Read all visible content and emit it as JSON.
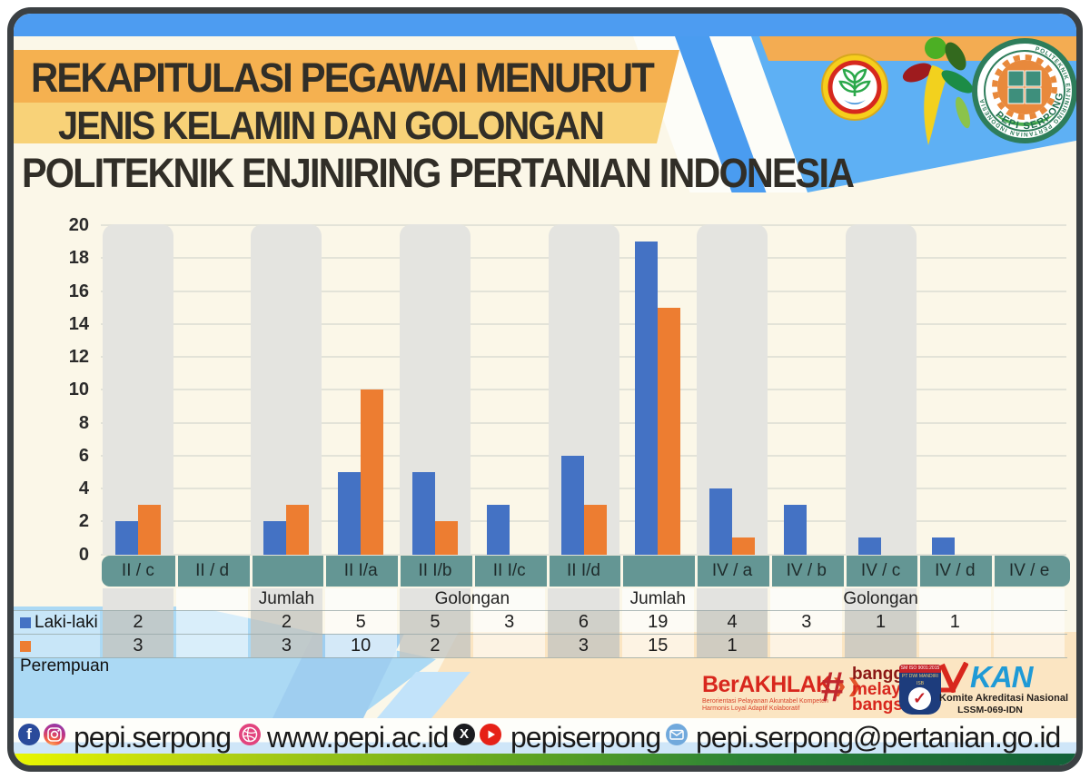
{
  "header": {
    "title_line1": "REKAPITULASI PEGAWAI MENURUT",
    "title_line2": "JENIS KELAMIN DAN GOLONGAN",
    "title_line3": "POLITEKNIK ENJINIRING PERTANIAN INDONESIA",
    "seal_ring_text": "POLITEKNIK ENJINIRING PERTANIAN INDONESIA",
    "seal_bottom_text": "PEPI SERPONG"
  },
  "chart_data": {
    "type": "bar",
    "title": "",
    "categories": [
      "II / c",
      "II / d",
      "",
      "II I/a",
      "II I/b",
      "II I/c",
      "II I/d",
      "",
      "IV / a",
      "IV / b",
      "IV / c",
      "IV / d",
      "IV / e"
    ],
    "group_labels": [
      {
        "text": "Jumlah",
        "from": 2,
        "to": 2
      },
      {
        "text": "Golongan",
        "from": 3,
        "to": 6
      },
      {
        "text": "Jumlah",
        "from": 7,
        "to": 7
      },
      {
        "text": "Golongan",
        "from": 8,
        "to": 12
      }
    ],
    "series": [
      {
        "name": "Laki-laki",
        "color": "#4472C4",
        "values": [
          2,
          null,
          2,
          5,
          5,
          3,
          6,
          19,
          4,
          3,
          1,
          1,
          null
        ]
      },
      {
        "name": "Perempuan",
        "color": "#ED7D31",
        "values": [
          3,
          null,
          3,
          10,
          2,
          null,
          3,
          15,
          1,
          null,
          null,
          null,
          null
        ]
      }
    ],
    "ylim": [
      0,
      20
    ],
    "ytick_step": 2,
    "grid": "horizontal",
    "shaded_columns": [
      0,
      2,
      4,
      6,
      8,
      10
    ],
    "legend_position": "left-of-table"
  },
  "footer": {
    "berakhlak_title": "BerAKHLAK",
    "berakhlak_chevron": "❯❯",
    "berakhlak_tagline1": "Berorientasi Pelayanan Akuntabel Kompeten",
    "berakhlak_tagline2": "Harmonis Loyal Adaptif Kolaboratif",
    "bangga_hash": "#",
    "bangga_line1": "bangga",
    "bangga_line2": "melayani",
    "bangga_line3": "bangsa",
    "iso_badge_line1": "SM ISO 9001:2015",
    "iso_badge_line2": "PT DWI MANDIRI ISB",
    "kan_title": "KAN",
    "kan_line1": "Komite Akreditasi Nasional",
    "kan_line2": "LSSM-069-IDN"
  },
  "social_bar": {
    "handle_fb_ig": "pepi.serpong",
    "website": "www.pepi.ac.id",
    "handle_x_yt": "pepiserpong",
    "email": "pepi.serpong@pertanian.go.id",
    "x_glyph": "X",
    "fb_glyph": "f"
  },
  "colors": {
    "laki": "#4472C4",
    "perempuan": "#ED7D31",
    "teal_band": "#649694",
    "band1": "#F5B150",
    "band2": "#F8D278",
    "cream": "#FBF7E8",
    "blue_strip": "#4D9CF1"
  }
}
